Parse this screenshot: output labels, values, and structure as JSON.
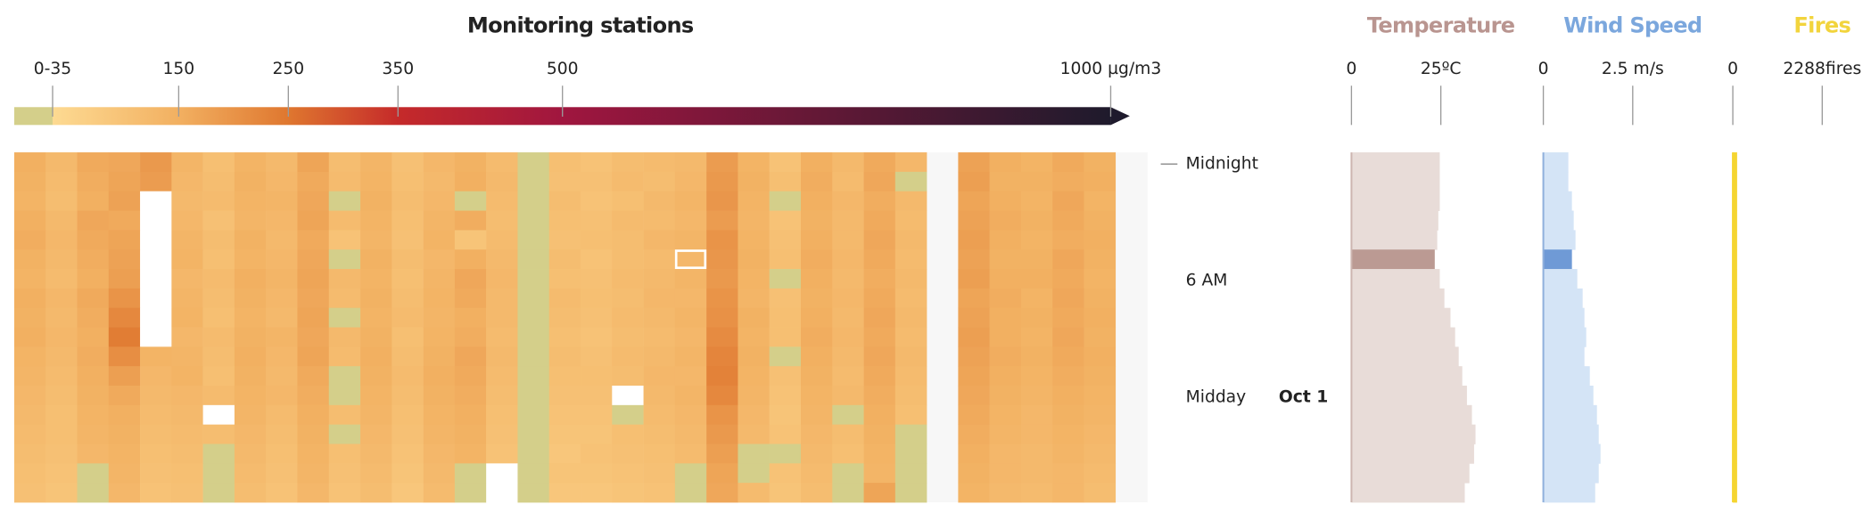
{
  "chart_data": [
    {
      "type": "heatmap",
      "title": "Monitoring stations",
      "title_color": "#a8163c",
      "colorbar": {
        "lim": [
          0,
          1000
        ],
        "ticks": [
          {
            "value": 35,
            "label": "0-35"
          },
          150,
          250,
          350,
          500,
          {
            "value": 1000,
            "label": "1000 µg/m3"
          }
        ],
        "colors": [
          "#d4cf8a",
          "#fdda92",
          "#f2b061",
          "#df772f",
          "#c52a2a",
          "#a0163f",
          "#1e1a2c"
        ]
      },
      "rows": [
        "Midnight",
        null,
        null,
        null,
        null,
        null,
        "6 AM",
        null,
        null,
        null,
        null,
        null,
        "Midday",
        null,
        null,
        null,
        null,
        null
      ],
      "date": "Oct 1",
      "selected_row": 5,
      "selected_column": 21,
      "missing_color": "#ffffff",
      "values": [
        [
          150,
          125,
          160,
          165,
          190,
          135,
          110,
          140,
          125,
          170,
          115,
          135,
          105,
          130,
          145,
          120,
          28,
          110,
          100,
          115,
          120,
          125,
          185,
          140,
          100,
          150,
          125,
          160,
          130,
          175,
          150,
          140,
          160,
          145
        ],
        [
          145,
          120,
          155,
          170,
          185,
          130,
          115,
          145,
          130,
          160,
          120,
          140,
          110,
          125,
          150,
          125,
          26,
          105,
          105,
          120,
          115,
          130,
          190,
          145,
          110,
          155,
          120,
          165,
          30,
          180,
          145,
          145,
          155,
          150
        ],
        [
          140,
          115,
          150,
          175,
          null,
          125,
          120,
          140,
          135,
          165,
          30,
          145,
          115,
          130,
          28,
          120,
          25,
          115,
          100,
          110,
          125,
          135,
          195,
          140,
          30,
          150,
          130,
          155,
          125,
          170,
          150,
          140,
          165,
          140
        ],
        [
          150,
          125,
          165,
          160,
          null,
          130,
          105,
          135,
          130,
          170,
          120,
          140,
          110,
          135,
          155,
          115,
          27,
          110,
          105,
          120,
          120,
          130,
          185,
          135,
          100,
          145,
          125,
          160,
          120,
          175,
          155,
          145,
          160,
          145
        ],
        [
          155,
          130,
          160,
          170,
          null,
          135,
          115,
          145,
          125,
          160,
          100,
          135,
          105,
          140,
          95,
          120,
          26,
          105,
          110,
          115,
          130,
          135,
          200,
          140,
          105,
          150,
          125,
          165,
          125,
          180,
          150,
          140,
          155,
          150
        ],
        [
          145,
          125,
          155,
          175,
          null,
          140,
          110,
          140,
          130,
          165,
          30,
          145,
          115,
          130,
          150,
          125,
          25,
          115,
          100,
          115,
          120,
          130,
          195,
          145,
          110,
          155,
          130,
          160,
          120,
          175,
          145,
          145,
          165,
          145
        ],
        [
          140,
          120,
          150,
          180,
          null,
          130,
          120,
          150,
          135,
          170,
          125,
          140,
          110,
          135,
          165,
          130,
          28,
          110,
          105,
          120,
          125,
          135,
          190,
          140,
          30,
          150,
          125,
          155,
          125,
          180,
          150,
          150,
          160,
          140
        ],
        [
          150,
          130,
          160,
          200,
          null,
          135,
          115,
          145,
          130,
          165,
          120,
          145,
          115,
          140,
          160,
          125,
          27,
          120,
          110,
          115,
          130,
          130,
          200,
          135,
          105,
          145,
          130,
          160,
          120,
          170,
          155,
          140,
          165,
          145
        ],
        [
          145,
          125,
          155,
          220,
          null,
          140,
          110,
          140,
          125,
          170,
          30,
          140,
          120,
          135,
          150,
          125,
          26,
          115,
          105,
          120,
          125,
          135,
          205,
          145,
          110,
          150,
          125,
          165,
          125,
          175,
          150,
          145,
          160,
          150
        ],
        [
          150,
          130,
          150,
          240,
          null,
          130,
          120,
          145,
          135,
          165,
          125,
          145,
          110,
          140,
          155,
          120,
          25,
          110,
          100,
          115,
          120,
          130,
          215,
          140,
          110,
          155,
          130,
          160,
          120,
          180,
          150,
          140,
          165,
          145
        ],
        [
          140,
          125,
          155,
          210,
          140,
          135,
          115,
          150,
          130,
          170,
          120,
          150,
          115,
          145,
          165,
          125,
          28,
          115,
          105,
          120,
          125,
          135,
          225,
          145,
          30,
          150,
          125,
          165,
          125,
          175,
          155,
          145,
          160,
          150
        ],
        [
          135,
          120,
          150,
          180,
          130,
          140,
          110,
          145,
          125,
          160,
          30,
          145,
          120,
          150,
          160,
          120,
          26,
          110,
          110,
          115,
          130,
          130,
          230,
          140,
          105,
          145,
          120,
          160,
          120,
          170,
          150,
          140,
          155,
          145
        ],
        [
          130,
          115,
          145,
          160,
          125,
          130,
          120,
          140,
          130,
          155,
          30,
          140,
          115,
          145,
          155,
          115,
          27,
          105,
          105,
          null,
          125,
          135,
          220,
          135,
          100,
          140,
          125,
          155,
          115,
          165,
          145,
          135,
          150,
          140
        ],
        [
          125,
          110,
          140,
          150,
          120,
          125,
          null,
          135,
          120,
          150,
          115,
          135,
          110,
          140,
          150,
          110,
          25,
          100,
          100,
          30,
          120,
          130,
          200,
          130,
          95,
          135,
          30,
          150,
          110,
          160,
          140,
          130,
          145,
          135
        ],
        [
          120,
          110,
          135,
          145,
          115,
          120,
          115,
          130,
          115,
          145,
          30,
          130,
          105,
          135,
          145,
          105,
          26,
          95,
          95,
          110,
          115,
          125,
          190,
          125,
          100,
          130,
          115,
          145,
          30,
          155,
          135,
          130,
          140,
          130
        ],
        [
          115,
          105,
          130,
          140,
          110,
          115,
          28,
          125,
          110,
          140,
          110,
          125,
          100,
          130,
          140,
          100,
          27,
          90,
          100,
          105,
          110,
          120,
          180,
          30,
          30,
          125,
          110,
          140,
          28,
          150,
          130,
          125,
          135,
          125
        ],
        [
          110,
          100,
          30,
          135,
          105,
          110,
          27,
          120,
          105,
          135,
          105,
          120,
          95,
          125,
          30,
          null,
          25,
          95,
          95,
          100,
          105,
          30,
          170,
          30,
          100,
          120,
          30,
          135,
          27,
          145,
          130,
          125,
          130,
          120
        ],
        [
          105,
          95,
          28,
          130,
          100,
          105,
          26,
          115,
          100,
          130,
          100,
          115,
          90,
          120,
          28,
          null,
          24,
          90,
          90,
          95,
          100,
          28,
          165,
          120,
          95,
          115,
          28,
          170,
          26,
          140,
          125,
          120,
          130,
          115
        ]
      ]
    },
    {
      "type": "bar",
      "title": "Temperature",
      "title_color": "#b99590",
      "color": "#e8dcd8",
      "highlight_color": "#bb9a93",
      "axis_color": "#cdb5b0",
      "xlim": [
        0,
        25
      ],
      "xticks": [
        0,
        {
          "value": 25,
          "label": "25ºC"
        }
      ],
      "values": [
        24.7,
        24.7,
        24.7,
        24.3,
        24,
        23.3,
        24.7,
        26,
        27.7,
        29,
        30,
        31,
        32.3,
        33.7,
        34.7,
        34.3,
        33,
        31.7
      ]
    },
    {
      "type": "bar",
      "title": "Wind Speed",
      "title_color": "#7ba7dd",
      "color": "#d4e4f6",
      "highlight_color": "#6f9ad6",
      "axis_color": "#8fb0dc",
      "xlim": [
        0,
        2.5
      ],
      "xticks": [
        0,
        {
          "value": 2.5,
          "label": "2.5 m/s"
        }
      ],
      "values": [
        0.7,
        0.7,
        0.8,
        0.85,
        0.9,
        0.8,
        0.95,
        1.1,
        1.15,
        1.2,
        1.15,
        1.3,
        1.4,
        1.5,
        1.55,
        1.6,
        1.55,
        1.45
      ]
    },
    {
      "type": "bar",
      "title": "Fires",
      "title_color": "#f2d43c",
      "color": "#f5d531",
      "highlight_color": "#f5d531",
      "axis_color": "#f5d531",
      "xlim": [
        0,
        2288
      ],
      "xticks": [
        0,
        {
          "value": 2288,
          "label": "2288fires"
        }
      ],
      "values": [
        110,
        110,
        110,
        110,
        110,
        110,
        110,
        110,
        110,
        110,
        110,
        110,
        110,
        110,
        110,
        110,
        110,
        110
      ]
    }
  ]
}
